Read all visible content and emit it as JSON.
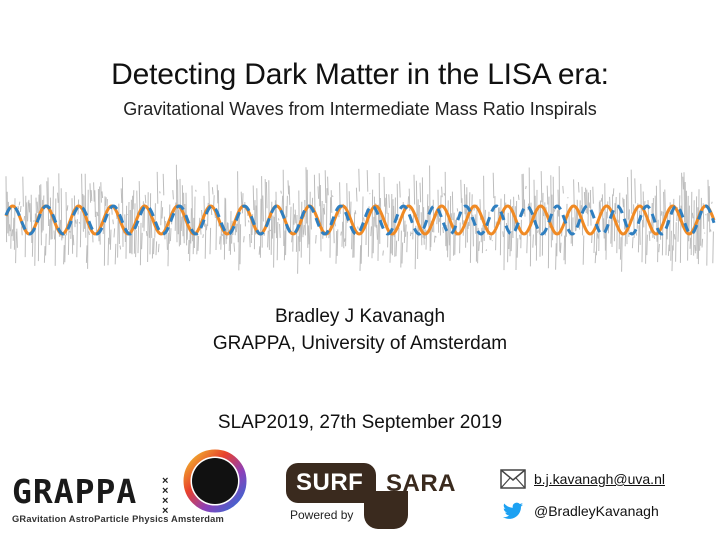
{
  "slide": {
    "title": "Detecting Dark Matter in the LISA era:",
    "subtitle": "Gravitational Waves from Intermediate Mass Ratio Inspirals",
    "author": "Bradley J Kavanagh",
    "affiliation": "GRAPPA, University of Amsterdam",
    "conference": "SLAP2019, 27th September 2019"
  },
  "waveform": {
    "colors": {
      "noise": "#bdbdbd",
      "signal_solid": "#f08a24",
      "signal_dashed": "#2f7fc0"
    }
  },
  "logos": {
    "grappa": {
      "word": "GRAPPA",
      "tagline": "GRavitation AstroParticle Physics Amsterdam"
    },
    "surfsara": {
      "surf": "SURF",
      "sara": "SARA",
      "powered_by": "Powered by"
    }
  },
  "contact": {
    "email": "b.j.kavanagh@uva.nl",
    "twitter": "@BradleyKavanagh",
    "email_icon": "envelope-icon",
    "twitter_icon": "twitter-bird-icon",
    "twitter_color": "#1da1f2"
  }
}
